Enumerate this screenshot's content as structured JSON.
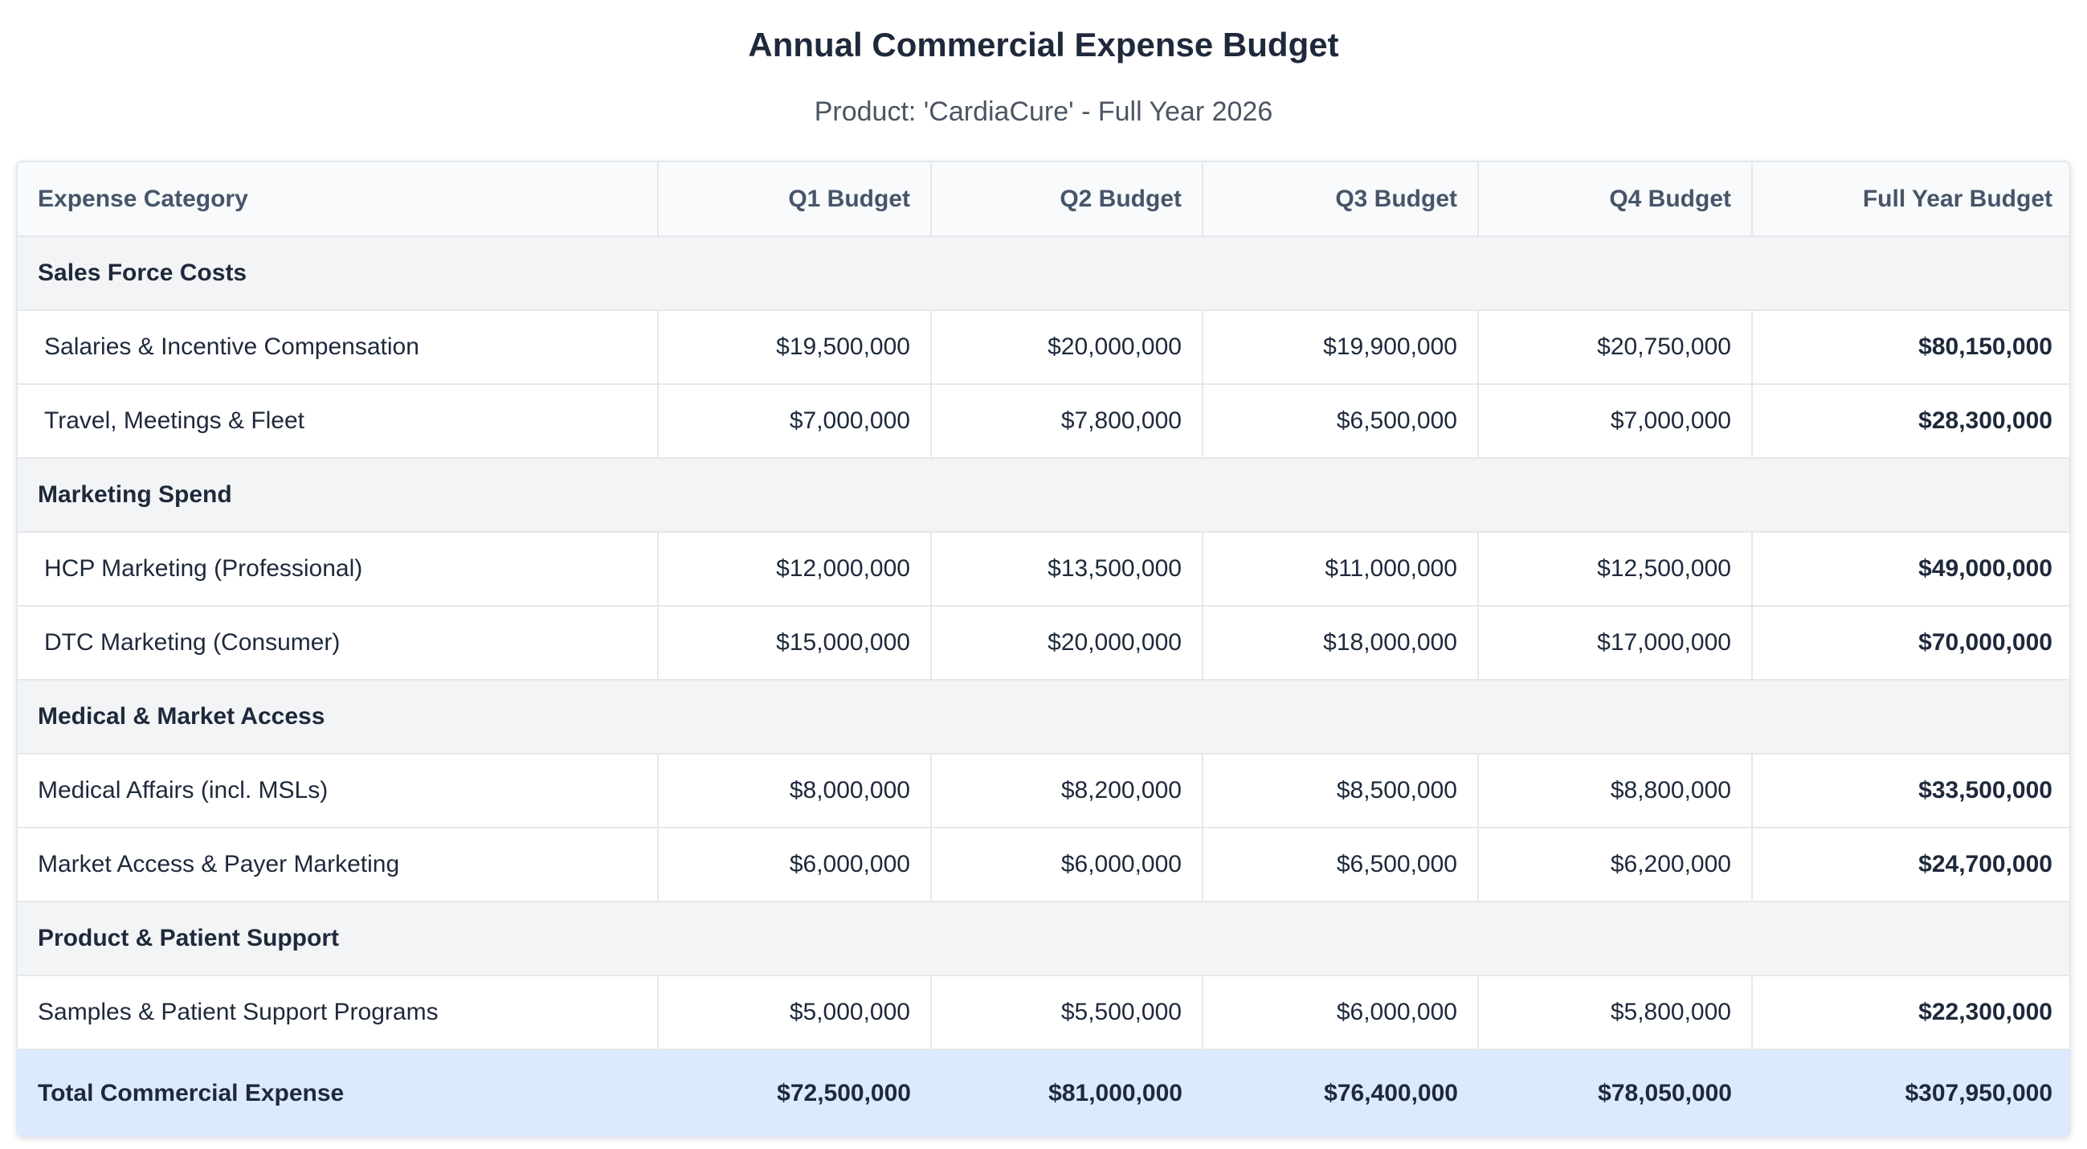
{
  "title": "Annual Commercial Expense Budget",
  "subtitle": "Product: 'CardiaCure' - Full Year 2026",
  "table": {
    "headers": [
      "Expense Category",
      "Q1 Budget",
      "Q2 Budget",
      "Q3 Budget",
      "Q4 Budget",
      "Full Year Budget"
    ],
    "groups": [
      {
        "label": "Sales Force Costs",
        "rows": [
          {
            "category": "Salaries & Incentive Compensation",
            "q1": "$19,500,000",
            "q2": "$20,000,000",
            "q3": "$19,900,000",
            "q4": "$20,750,000",
            "fy": "$80,150,000"
          },
          {
            "category": "Travel, Meetings & Fleet",
            "q1": "$7,000,000",
            "q2": "$7,800,000",
            "q3": "$6,500,000",
            "q4": "$7,000,000",
            "fy": "$28,300,000"
          }
        ]
      },
      {
        "label": "Marketing Spend",
        "rows": [
          {
            "category": "HCP Marketing (Professional)",
            "q1": "$12,000,000",
            "q2": "$13,500,000",
            "q3": "$11,000,000",
            "q4": "$12,500,000",
            "fy": "$49,000,000"
          },
          {
            "category": "DTC Marketing (Consumer)",
            "q1": "$15,000,000",
            "q2": "$20,000,000",
            "q3": "$18,000,000",
            "q4": "$17,000,000",
            "fy": "$70,000,000"
          }
        ]
      },
      {
        "label": "Medical & Market Access",
        "rows": [
          {
            "category": "Medical Affairs (incl. MSLs)",
            "q1": "$8,000,000",
            "q2": "$8,200,000",
            "q3": "$8,500,000",
            "q4": "$8,800,000",
            "fy": "$33,500,000"
          },
          {
            "category": "Market Access & Payer Marketing",
            "q1": "$6,000,000",
            "q2": "$6,000,000",
            "q3": "$6,500,000",
            "q4": "$6,200,000",
            "fy": "$24,700,000"
          }
        ]
      },
      {
        "label": "Product & Patient Support",
        "rows": [
          {
            "category": "Samples & Patient Support Programs",
            "q1": "$5,000,000",
            "q2": "$5,500,000",
            "q3": "$6,000,000",
            "q4": "$5,800,000",
            "fy": "$22,300,000"
          }
        ]
      }
    ],
    "total": {
      "category": "Total Commercial Expense",
      "q1": "$72,500,000",
      "q2": "$81,000,000",
      "q3": "$76,400,000",
      "q4": "$78,050,000",
      "fy": "$307,950,000"
    }
  },
  "colors": {
    "header_bg": "#f8fafc",
    "group_bg": "#f3f4f6",
    "total_bg": "#dbeafe",
    "text": "#1e293b"
  }
}
